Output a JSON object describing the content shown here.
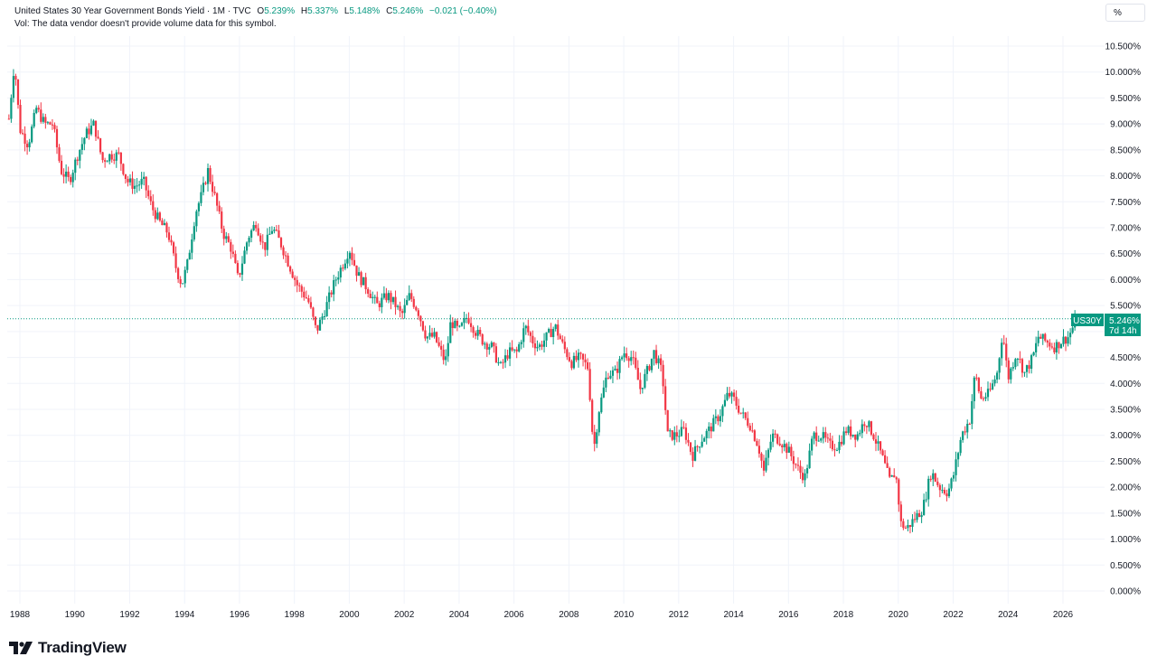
{
  "header": {
    "title": "United States 30 Year Government Bonds Yield · 1M · TVC",
    "open_label": "O",
    "open": "5.239%",
    "high_label": "H",
    "high": "5.337%",
    "low_label": "L",
    "low": "5.148%",
    "close_label": "C",
    "close": "5.246%",
    "change": "−0.021 (−0.40%)",
    "vol_note": "Vol: The data vendor doesn't provide volume data for this symbol."
  },
  "unit_button": "%",
  "price_badge": {
    "symbol": "US30Y",
    "value": "5.246%",
    "countdown": "7d 14h"
  },
  "brand": {
    "name": "TradingView",
    "icon": "tradingview-logo-icon"
  },
  "colors": {
    "up": "#089981",
    "down": "#f23645",
    "grid": "#f0f3fa",
    "text": "#131722"
  },
  "chart_data": {
    "type": "candlestick",
    "timeframe": "1M",
    "x_ticks": [
      "1988",
      "1990",
      "1992",
      "1994",
      "1996",
      "1998",
      "2000",
      "2002",
      "2004",
      "2006",
      "2008",
      "2010",
      "2012",
      "2014",
      "2016",
      "2018",
      "2020",
      "2022",
      "2024",
      "2026"
    ],
    "y_ticks": [
      "0.000%",
      "0.500%",
      "1.000%",
      "1.500%",
      "2.000%",
      "2.500%",
      "3.000%",
      "3.500%",
      "4.000%",
      "4.500%",
      "5.000%",
      "5.500%",
      "6.000%",
      "6.500%",
      "7.000%",
      "7.500%",
      "8.000%",
      "8.500%",
      "9.000%",
      "9.500%",
      "10.000%",
      "10.500%"
    ],
    "ylim": [
      0,
      10.5
    ],
    "xlim": [
      1987.6,
      2026.9
    ],
    "last_price": 5.246,
    "series": [
      {
        "values": [
          [
            1987.6,
            9.1
          ],
          [
            1987.8,
            10.2
          ],
          [
            1988.0,
            8.9
          ],
          [
            1988.3,
            8.6
          ],
          [
            1988.6,
            9.3
          ],
          [
            1988.9,
            9.0
          ],
          [
            1989.2,
            9.0
          ],
          [
            1989.5,
            8.1
          ],
          [
            1989.8,
            7.9
          ],
          [
            1990.1,
            8.4
          ],
          [
            1990.4,
            8.8
          ],
          [
            1990.7,
            9.0
          ],
          [
            1991.0,
            8.3
          ],
          [
            1991.3,
            8.4
          ],
          [
            1991.6,
            8.4
          ],
          [
            1991.9,
            7.9
          ],
          [
            1992.2,
            7.8
          ],
          [
            1992.5,
            7.9
          ],
          [
            1992.8,
            7.4
          ],
          [
            1993.1,
            7.1
          ],
          [
            1993.4,
            6.9
          ],
          [
            1993.7,
            6.2
          ],
          [
            1993.9,
            5.9
          ],
          [
            1994.1,
            6.3
          ],
          [
            1994.4,
            7.3
          ],
          [
            1994.6,
            7.6
          ],
          [
            1994.85,
            8.1
          ],
          [
            1995.1,
            7.6
          ],
          [
            1995.4,
            6.9
          ],
          [
            1995.7,
            6.6
          ],
          [
            1995.95,
            6.0
          ],
          [
            1996.3,
            6.8
          ],
          [
            1996.6,
            7.1
          ],
          [
            1996.9,
            6.6
          ],
          [
            1997.2,
            7.0
          ],
          [
            1997.5,
            6.7
          ],
          [
            1997.8,
            6.3
          ],
          [
            1998.1,
            5.9
          ],
          [
            1998.5,
            5.6
          ],
          [
            1998.8,
            5.0
          ],
          [
            1999.1,
            5.4
          ],
          [
            1999.5,
            6.0
          ],
          [
            1999.85,
            6.4
          ],
          [
            2000.0,
            6.6
          ],
          [
            2000.3,
            6.1
          ],
          [
            2000.7,
            5.8
          ],
          [
            2001.0,
            5.5
          ],
          [
            2001.4,
            5.7
          ],
          [
            2001.7,
            5.5
          ],
          [
            2001.9,
            5.3
          ],
          [
            2002.2,
            5.7
          ],
          [
            2002.5,
            5.4
          ],
          [
            2002.8,
            4.9
          ],
          [
            2003.1,
            4.9
          ],
          [
            2003.5,
            4.4
          ],
          [
            2003.7,
            5.2
          ],
          [
            2004.0,
            5.0
          ],
          [
            2004.3,
            5.3
          ],
          [
            2004.6,
            5.0
          ],
          [
            2004.9,
            4.8
          ],
          [
            2005.2,
            4.7
          ],
          [
            2005.5,
            4.3
          ],
          [
            2005.8,
            4.6
          ],
          [
            2006.1,
            4.6
          ],
          [
            2006.4,
            5.1
          ],
          [
            2006.7,
            4.8
          ],
          [
            2006.9,
            4.7
          ],
          [
            2007.2,
            4.9
          ],
          [
            2007.5,
            5.1
          ],
          [
            2007.8,
            4.7
          ],
          [
            2008.1,
            4.4
          ],
          [
            2008.4,
            4.5
          ],
          [
            2008.7,
            4.3
          ],
          [
            2008.9,
            2.7
          ],
          [
            2009.1,
            3.5
          ],
          [
            2009.4,
            4.2
          ],
          [
            2009.7,
            4.2
          ],
          [
            2010.0,
            4.6
          ],
          [
            2010.3,
            4.5
          ],
          [
            2010.6,
            3.9
          ],
          [
            2010.9,
            4.3
          ],
          [
            2011.1,
            4.6
          ],
          [
            2011.4,
            4.2
          ],
          [
            2011.6,
            3.0
          ],
          [
            2011.9,
            3.0
          ],
          [
            2012.2,
            3.1
          ],
          [
            2012.5,
            2.6
          ],
          [
            2012.8,
            2.9
          ],
          [
            2013.1,
            3.1
          ],
          [
            2013.5,
            3.4
          ],
          [
            2013.8,
            3.8
          ],
          [
            2014.0,
            3.7
          ],
          [
            2014.3,
            3.4
          ],
          [
            2014.6,
            3.2
          ],
          [
            2014.9,
            2.8
          ],
          [
            2015.1,
            2.3
          ],
          [
            2015.4,
            3.0
          ],
          [
            2015.7,
            2.9
          ],
          [
            2016.0,
            2.7
          ],
          [
            2016.4,
            2.3
          ],
          [
            2016.6,
            2.2
          ],
          [
            2016.9,
            3.0
          ],
          [
            2017.2,
            3.0
          ],
          [
            2017.5,
            2.8
          ],
          [
            2017.8,
            2.8
          ],
          [
            2018.1,
            3.1
          ],
          [
            2018.5,
            3.0
          ],
          [
            2018.8,
            3.3
          ],
          [
            2019.1,
            3.0
          ],
          [
            2019.4,
            2.6
          ],
          [
            2019.7,
            2.1
          ],
          [
            2019.9,
            2.3
          ],
          [
            2020.1,
            1.3
          ],
          [
            2020.3,
            1.2
          ],
          [
            2020.6,
            1.4
          ],
          [
            2020.9,
            1.6
          ],
          [
            2021.2,
            2.3
          ],
          [
            2021.5,
            2.0
          ],
          [
            2021.8,
            1.9
          ],
          [
            2022.0,
            2.2
          ],
          [
            2022.3,
            3.0
          ],
          [
            2022.6,
            3.3
          ],
          [
            2022.8,
            4.2
          ],
          [
            2023.0,
            3.7
          ],
          [
            2023.3,
            3.8
          ],
          [
            2023.6,
            4.2
          ],
          [
            2023.8,
            5.0
          ],
          [
            2024.0,
            4.1
          ],
          [
            2024.3,
            4.6
          ],
          [
            2024.6,
            4.2
          ],
          [
            2024.9,
            4.5
          ],
          [
            2025.1,
            4.9
          ],
          [
            2025.4,
            4.8
          ],
          [
            2025.7,
            4.7
          ],
          [
            2025.9,
            4.8
          ],
          [
            2026.2,
            4.9
          ],
          [
            2026.5,
            5.25
          ]
        ]
      }
    ]
  }
}
